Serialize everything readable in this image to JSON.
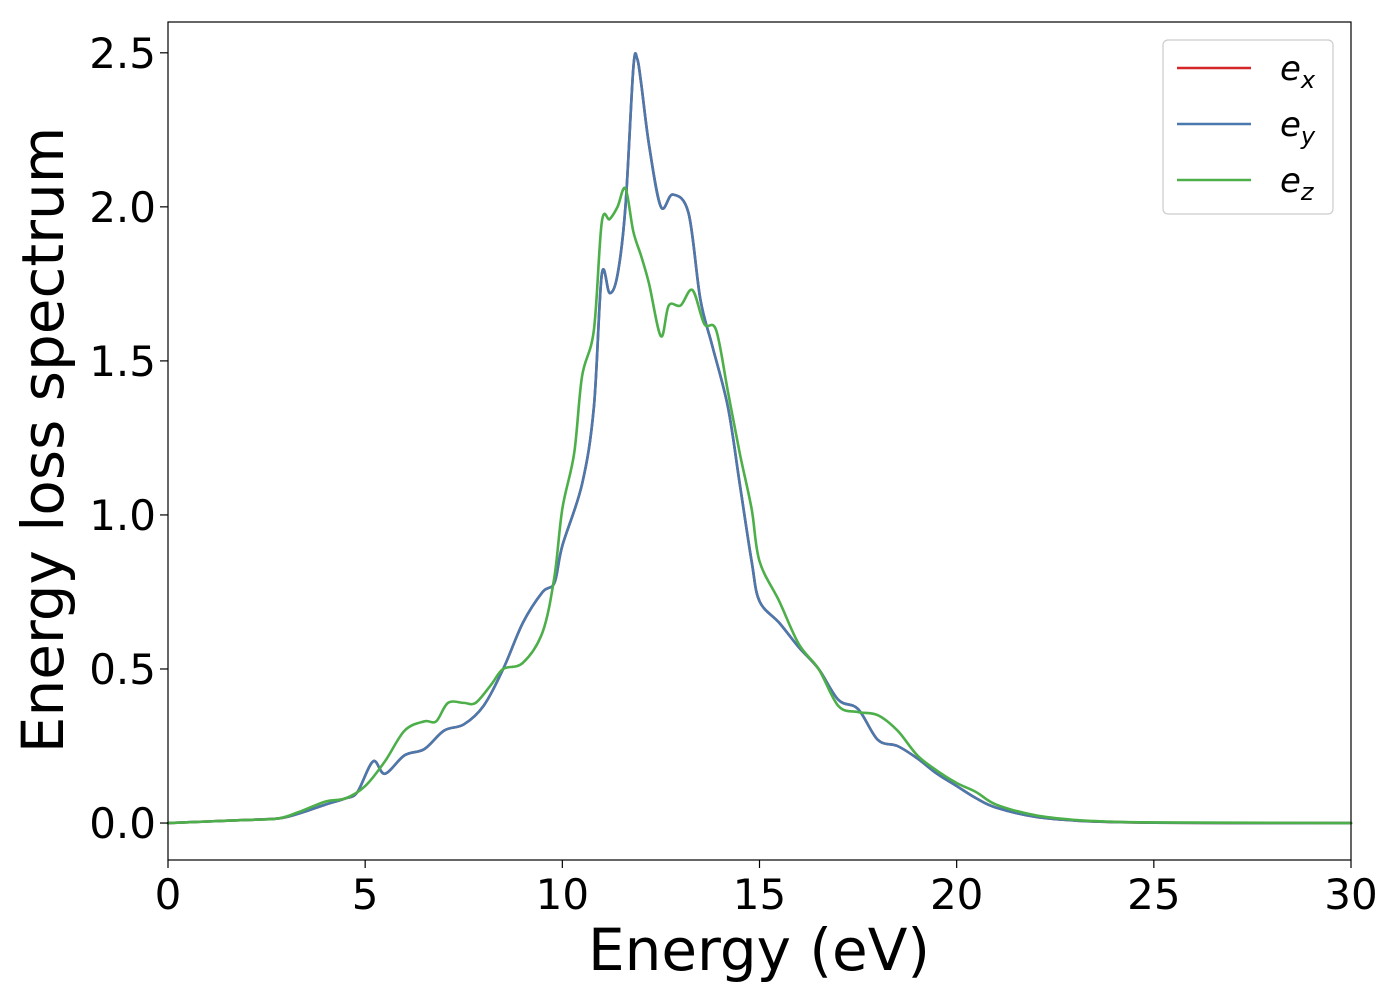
{
  "chart_data": {
    "type": "line",
    "title": "",
    "xlabel": "Energy (eV)",
    "ylabel": "Energy loss spectrum",
    "xlim": [
      0,
      30
    ],
    "ylim": [
      -0.12,
      2.6
    ],
    "xticks": [
      0,
      5,
      10,
      15,
      20,
      25,
      30
    ],
    "xtick_labels": [
      "0",
      "5",
      "10",
      "15",
      "20",
      "25",
      "30"
    ],
    "yticks": [
      0.0,
      0.5,
      1.0,
      1.5,
      2.0,
      2.5
    ],
    "ytick_labels": [
      "0.0",
      "0.5",
      "1.0",
      "1.5",
      "2.0",
      "2.5"
    ],
    "grid": false,
    "legend_position": "top-right",
    "series": [
      {
        "name": "e_x",
        "label_base": "e",
        "label_sub": "x",
        "color": "#d62728",
        "x": [
          0,
          1,
          2,
          2.8,
          3.3,
          4,
          4.5,
          4.8,
          5.2,
          5.5,
          6,
          6.5,
          7,
          7.5,
          8,
          8.5,
          9,
          9.5,
          9.8,
          10,
          10.5,
          10.8,
          11,
          11.2,
          11.4,
          11.6,
          11.8,
          11.9,
          12,
          12.2,
          12.5,
          12.8,
          13.2,
          13.5,
          13.8,
          14.2,
          14.5,
          14.8,
          15,
          15.5,
          16,
          16.5,
          17,
          17.5,
          18,
          18.5,
          19,
          19.5,
          20,
          20.5,
          21,
          22,
          23,
          24,
          25,
          27,
          30
        ],
        "y": [
          0.0,
          0.005,
          0.01,
          0.015,
          0.03,
          0.06,
          0.08,
          0.1,
          0.2,
          0.16,
          0.22,
          0.24,
          0.3,
          0.32,
          0.38,
          0.5,
          0.65,
          0.75,
          0.78,
          0.9,
          1.1,
          1.35,
          1.78,
          1.72,
          1.78,
          2.0,
          2.45,
          2.48,
          2.4,
          2.2,
          2.0,
          2.04,
          1.98,
          1.7,
          1.55,
          1.35,
          1.1,
          0.85,
          0.72,
          0.65,
          0.57,
          0.5,
          0.4,
          0.37,
          0.27,
          0.25,
          0.21,
          0.16,
          0.12,
          0.08,
          0.05,
          0.02,
          0.008,
          0.003,
          0.001,
          0.0,
          0.0
        ]
      },
      {
        "name": "e_y",
        "label_base": "e",
        "label_sub": "y",
        "color": "#4a79ad",
        "x": [
          0,
          1,
          2,
          2.8,
          3.3,
          4,
          4.5,
          4.8,
          5.2,
          5.5,
          6,
          6.5,
          7,
          7.5,
          8,
          8.5,
          9,
          9.5,
          9.8,
          10,
          10.5,
          10.8,
          11,
          11.2,
          11.4,
          11.6,
          11.8,
          11.9,
          12,
          12.2,
          12.5,
          12.8,
          13.2,
          13.5,
          13.8,
          14.2,
          14.5,
          14.8,
          15,
          15.5,
          16,
          16.5,
          17,
          17.5,
          18,
          18.5,
          19,
          19.5,
          20,
          20.5,
          21,
          22,
          23,
          24,
          25,
          27,
          30
        ],
        "y": [
          0.0,
          0.005,
          0.01,
          0.015,
          0.03,
          0.06,
          0.08,
          0.1,
          0.2,
          0.16,
          0.22,
          0.24,
          0.3,
          0.32,
          0.38,
          0.5,
          0.65,
          0.75,
          0.78,
          0.9,
          1.1,
          1.35,
          1.78,
          1.72,
          1.78,
          2.0,
          2.45,
          2.48,
          2.4,
          2.2,
          2.0,
          2.04,
          1.98,
          1.7,
          1.55,
          1.35,
          1.1,
          0.85,
          0.72,
          0.65,
          0.57,
          0.5,
          0.4,
          0.37,
          0.27,
          0.25,
          0.21,
          0.16,
          0.12,
          0.08,
          0.05,
          0.02,
          0.008,
          0.003,
          0.001,
          0.0,
          0.0
        ]
      },
      {
        "name": "e_z",
        "label_base": "e",
        "label_sub": "z",
        "color": "#4daf4a",
        "x": [
          0,
          1,
          2,
          2.8,
          3.3,
          4,
          4.5,
          5,
          5.5,
          6,
          6.5,
          6.8,
          7.1,
          7.5,
          7.8,
          8.2,
          8.5,
          9,
          9.5,
          9.8,
          10,
          10.3,
          10.5,
          10.8,
          11,
          11.2,
          11.4,
          11.6,
          11.8,
          12,
          12.2,
          12.5,
          12.7,
          13,
          13.3,
          13.6,
          13.9,
          14.2,
          14.5,
          14.8,
          15,
          15.5,
          16,
          16.5,
          17,
          17.5,
          18,
          18.5,
          19,
          19.5,
          20,
          20.5,
          21,
          22,
          23,
          24,
          25,
          27,
          30
        ],
        "y": [
          0.0,
          0.005,
          0.01,
          0.015,
          0.035,
          0.07,
          0.08,
          0.12,
          0.2,
          0.3,
          0.33,
          0.33,
          0.39,
          0.39,
          0.39,
          0.45,
          0.5,
          0.52,
          0.62,
          0.8,
          1.02,
          1.2,
          1.45,
          1.6,
          1.95,
          1.96,
          2.0,
          2.06,
          1.92,
          1.84,
          1.75,
          1.58,
          1.68,
          1.68,
          1.73,
          1.62,
          1.6,
          1.4,
          1.2,
          1.02,
          0.85,
          0.72,
          0.58,
          0.5,
          0.38,
          0.36,
          0.35,
          0.3,
          0.22,
          0.17,
          0.13,
          0.1,
          0.06,
          0.025,
          0.01,
          0.004,
          0.002,
          0.001,
          0.0
        ]
      }
    ]
  }
}
